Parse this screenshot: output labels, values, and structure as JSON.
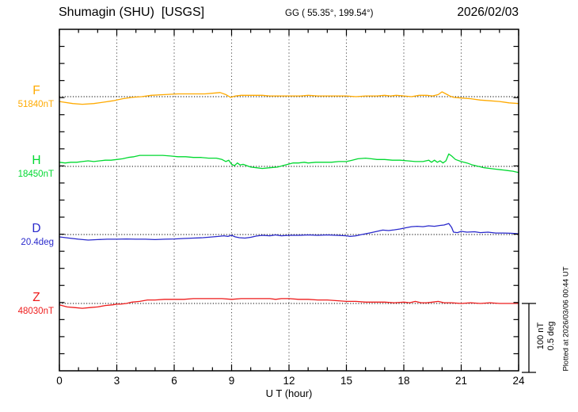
{
  "header": {
    "title": "Shumagin (SHU)  [USGS]",
    "coords": "GG ( 55.35°, 199.54°)",
    "date": "2026/02/03"
  },
  "annotations": {
    "plotted_at": "Plotted at 2026/03/06 00:44 UT"
  },
  "chart_data": {
    "type": "line",
    "title": "Shumagin (SHU)  [USGS]",
    "xlabel": "U T (hour)",
    "x_range": [
      0,
      24
    ],
    "x_major_ticks": [
      0,
      3,
      6,
      9,
      12,
      15,
      18,
      21,
      24
    ],
    "x_minor_tick_step": 1,
    "grid": "dotted vertical at 3h intervals, dotted horizontal at each channel baseline",
    "scale_bar": {
      "line1": "100 nT",
      "line2": "0.5 deg",
      "nT_per_bar": 100,
      "deg_per_bar": 0.5
    },
    "series": [
      {
        "name": "F",
        "unit": "nT",
        "baseline_label": "51840nT",
        "baseline_value": 51840,
        "color": "#ffaa00",
        "points": [
          [
            0,
            51833
          ],
          [
            0.7,
            51830
          ],
          [
            1.2,
            51829
          ],
          [
            1.8,
            51830
          ],
          [
            2.3,
            51832
          ],
          [
            2.8,
            51834
          ],
          [
            3.3,
            51837
          ],
          [
            3.8,
            51839
          ],
          [
            4.3,
            51840
          ],
          [
            4.8,
            51842
          ],
          [
            5.5,
            51843
          ],
          [
            6.2,
            51844
          ],
          [
            7,
            51844
          ],
          [
            7.6,
            51844
          ],
          [
            8,
            51845
          ],
          [
            8.4,
            51846
          ],
          [
            8.7,
            51843
          ],
          [
            8.95,
            51839
          ],
          [
            9.2,
            51841
          ],
          [
            9.5,
            51842
          ],
          [
            10,
            51842
          ],
          [
            10.6,
            51842
          ],
          [
            11,
            51841
          ],
          [
            11.5,
            51841
          ],
          [
            12,
            51841
          ],
          [
            12.6,
            51841
          ],
          [
            13,
            51842
          ],
          [
            13.5,
            51841
          ],
          [
            14,
            51841
          ],
          [
            14.5,
            51841
          ],
          [
            15,
            51841
          ],
          [
            15.5,
            51840
          ],
          [
            16,
            51841
          ],
          [
            16.6,
            51841
          ],
          [
            17,
            51842
          ],
          [
            17.3,
            51841
          ],
          [
            17.6,
            51842
          ],
          [
            18,
            51841
          ],
          [
            18.4,
            51840
          ],
          [
            18.8,
            51842
          ],
          [
            19.2,
            51842
          ],
          [
            19.5,
            51841
          ],
          [
            19.8,
            51843
          ],
          [
            20,
            51847
          ],
          [
            20.2,
            51844
          ],
          [
            20.4,
            51841
          ],
          [
            20.6,
            51839
          ],
          [
            21,
            51838
          ],
          [
            21.5,
            51837
          ],
          [
            22,
            51835
          ],
          [
            22.5,
            51834
          ],
          [
            23,
            51833
          ],
          [
            23.5,
            51831
          ],
          [
            24,
            51830
          ]
        ]
      },
      {
        "name": "H",
        "unit": "nT",
        "baseline_label": "18450nT",
        "baseline_value": 18450,
        "color": "#00d930",
        "points": [
          [
            0,
            18456
          ],
          [
            0.3,
            18455
          ],
          [
            0.6,
            18456
          ],
          [
            0.9,
            18456
          ],
          [
            1.2,
            18457
          ],
          [
            1.5,
            18458
          ],
          [
            1.8,
            18457
          ],
          [
            2.1,
            18458
          ],
          [
            2.4,
            18459
          ],
          [
            2.7,
            18459
          ],
          [
            3,
            18460
          ],
          [
            3.3,
            18461
          ],
          [
            3.6,
            18463
          ],
          [
            3.9,
            18464
          ],
          [
            4.2,
            18466
          ],
          [
            4.6,
            18466
          ],
          [
            5,
            18466
          ],
          [
            5.4,
            18466
          ],
          [
            5.8,
            18465
          ],
          [
            6.2,
            18464
          ],
          [
            6.6,
            18464
          ],
          [
            7,
            18463
          ],
          [
            7.4,
            18463
          ],
          [
            7.8,
            18462
          ],
          [
            8.2,
            18462
          ],
          [
            8.5,
            18460
          ],
          [
            8.7,
            18457
          ],
          [
            8.85,
            18459
          ],
          [
            9,
            18453
          ],
          [
            9.15,
            18451
          ],
          [
            9.3,
            18455
          ],
          [
            9.45,
            18452
          ],
          [
            9.6,
            18453
          ],
          [
            9.8,
            18451
          ],
          [
            10,
            18449
          ],
          [
            10.3,
            18448
          ],
          [
            10.6,
            18447
          ],
          [
            11,
            18448
          ],
          [
            11.4,
            18449
          ],
          [
            11.8,
            18452
          ],
          [
            12.2,
            18455
          ],
          [
            12.5,
            18455
          ],
          [
            12.8,
            18456
          ],
          [
            13,
            18455
          ],
          [
            13.4,
            18456
          ],
          [
            13.8,
            18456
          ],
          [
            14.2,
            18456
          ],
          [
            14.6,
            18457
          ],
          [
            15,
            18457
          ],
          [
            15.3,
            18459
          ],
          [
            15.6,
            18461
          ],
          [
            16,
            18462
          ],
          [
            16.3,
            18461
          ],
          [
            16.6,
            18460
          ],
          [
            17,
            18460
          ],
          [
            17.4,
            18459
          ],
          [
            17.8,
            18459
          ],
          [
            18.2,
            18458
          ],
          [
            18.6,
            18457
          ],
          [
            19,
            18457
          ],
          [
            19.3,
            18459
          ],
          [
            19.45,
            18456
          ],
          [
            19.6,
            18459
          ],
          [
            19.75,
            18456
          ],
          [
            19.9,
            18458
          ],
          [
            20.05,
            18455
          ],
          [
            20.2,
            18458
          ],
          [
            20.35,
            18468
          ],
          [
            20.5,
            18465
          ],
          [
            20.7,
            18460
          ],
          [
            21,
            18457
          ],
          [
            21.3,
            18455
          ],
          [
            21.6,
            18452
          ],
          [
            21.9,
            18450
          ],
          [
            22.2,
            18448
          ],
          [
            22.5,
            18447
          ],
          [
            22.8,
            18446
          ],
          [
            23.1,
            18445
          ],
          [
            23.4,
            18444
          ],
          [
            23.7,
            18443
          ],
          [
            24,
            18441
          ]
        ]
      },
      {
        "name": "D",
        "unit": "deg",
        "baseline_label": "20.4deg",
        "baseline_value": 20.4,
        "color": "#2929cc",
        "points": [
          [
            0,
            20.383
          ],
          [
            0.5,
            20.374
          ],
          [
            1,
            20.366
          ],
          [
            1.5,
            20.36
          ],
          [
            2,
            20.363
          ],
          [
            2.5,
            20.366
          ],
          [
            3,
            20.366
          ],
          [
            3.5,
            20.368
          ],
          [
            4,
            20.366
          ],
          [
            4.5,
            20.366
          ],
          [
            5,
            20.363
          ],
          [
            5.5,
            20.366
          ],
          [
            6,
            20.368
          ],
          [
            6.5,
            20.371
          ],
          [
            7,
            20.374
          ],
          [
            7.5,
            20.377
          ],
          [
            8,
            20.383
          ],
          [
            8.3,
            20.386
          ],
          [
            8.6,
            20.391
          ],
          [
            8.8,
            20.386
          ],
          [
            9,
            20.394
          ],
          [
            9.2,
            20.383
          ],
          [
            9.4,
            20.377
          ],
          [
            9.7,
            20.374
          ],
          [
            10,
            20.38
          ],
          [
            10.3,
            20.389
          ],
          [
            10.6,
            20.394
          ],
          [
            11,
            20.391
          ],
          [
            11.3,
            20.397
          ],
          [
            11.6,
            20.391
          ],
          [
            12,
            20.394
          ],
          [
            12.5,
            20.394
          ],
          [
            13,
            20.397
          ],
          [
            13.5,
            20.394
          ],
          [
            14,
            20.397
          ],
          [
            14.5,
            20.394
          ],
          [
            15,
            20.391
          ],
          [
            15.2,
            20.386
          ],
          [
            15.5,
            20.391
          ],
          [
            15.8,
            20.4
          ],
          [
            16.2,
            20.411
          ],
          [
            16.6,
            20.423
          ],
          [
            16.9,
            20.432
          ],
          [
            17.2,
            20.429
          ],
          [
            17.5,
            20.434
          ],
          [
            17.8,
            20.44
          ],
          [
            18.1,
            20.449
          ],
          [
            18.4,
            20.457
          ],
          [
            18.7,
            20.46
          ],
          [
            19,
            20.457
          ],
          [
            19.3,
            20.463
          ],
          [
            19.6,
            20.46
          ],
          [
            19.9,
            20.466
          ],
          [
            20.1,
            20.469
          ],
          [
            20.35,
            20.48
          ],
          [
            20.5,
            20.452
          ],
          [
            20.6,
            20.417
          ],
          [
            20.8,
            20.414
          ],
          [
            21,
            20.423
          ],
          [
            21.3,
            20.417
          ],
          [
            21.7,
            20.42
          ],
          [
            22,
            20.414
          ],
          [
            22.4,
            20.417
          ],
          [
            22.8,
            20.411
          ],
          [
            23.2,
            20.411
          ],
          [
            23.6,
            20.409
          ],
          [
            24,
            20.406
          ]
        ]
      },
      {
        "name": "Z",
        "unit": "nT",
        "baseline_label": "48030nT",
        "baseline_value": 48030,
        "color": "#ee1c1c",
        "points": [
          [
            0,
            48028
          ],
          [
            0.4,
            48025
          ],
          [
            0.8,
            48024
          ],
          [
            1.2,
            48023
          ],
          [
            1.6,
            48024
          ],
          [
            2,
            48025
          ],
          [
            2.4,
            48027
          ],
          [
            2.8,
            48028
          ],
          [
            3,
            48029
          ],
          [
            3.2,
            48029
          ],
          [
            3.5,
            48030
          ],
          [
            3.8,
            48032
          ],
          [
            4.2,
            48033
          ],
          [
            4.6,
            48035
          ],
          [
            5,
            48035
          ],
          [
            5.5,
            48036
          ],
          [
            6,
            48036
          ],
          [
            6.5,
            48036
          ],
          [
            7,
            48037
          ],
          [
            7.5,
            48037
          ],
          [
            8,
            48037
          ],
          [
            8.5,
            48037
          ],
          [
            9,
            48036
          ],
          [
            9.5,
            48037
          ],
          [
            10,
            48037
          ],
          [
            10.5,
            48037
          ],
          [
            11,
            48037
          ],
          [
            11.3,
            48036
          ],
          [
            11.6,
            48037
          ],
          [
            12,
            48037
          ],
          [
            12.5,
            48036
          ],
          [
            13,
            48036
          ],
          [
            13.5,
            48035
          ],
          [
            14,
            48035
          ],
          [
            14.5,
            48034
          ],
          [
            15,
            48033
          ],
          [
            15.5,
            48033
          ],
          [
            16,
            48032
          ],
          [
            16.5,
            48032
          ],
          [
            17,
            48032
          ],
          [
            17.5,
            48031
          ],
          [
            18,
            48032
          ],
          [
            18.3,
            48031
          ],
          [
            18.6,
            48033
          ],
          [
            18.9,
            48031
          ],
          [
            19.2,
            48031
          ],
          [
            19.5,
            48032
          ],
          [
            19.8,
            48033
          ],
          [
            20.1,
            48031
          ],
          [
            20.5,
            48031
          ],
          [
            21,
            48030
          ],
          [
            21.5,
            48031
          ],
          [
            22,
            48030
          ],
          [
            22.5,
            48031
          ],
          [
            23,
            48030
          ],
          [
            23.5,
            48030
          ],
          [
            24,
            48030
          ]
        ]
      }
    ]
  }
}
